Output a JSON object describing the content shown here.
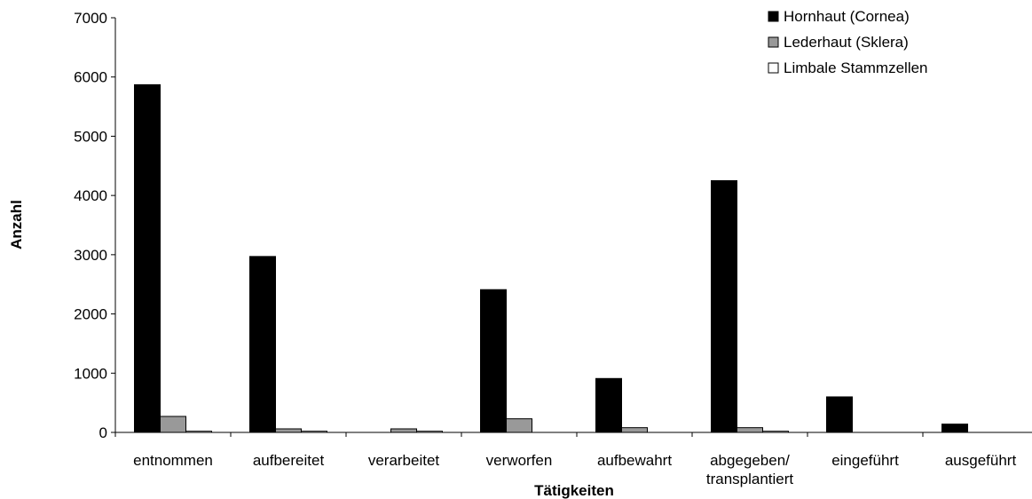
{
  "chart_data": {
    "type": "bar",
    "title": "",
    "xlabel": "Tätigkeiten",
    "ylabel": "Anzahl",
    "ylim": [
      0,
      7000
    ],
    "yticks": [
      0,
      1000,
      2000,
      3000,
      4000,
      5000,
      6000,
      7000
    ],
    "grid": false,
    "legend_position": "top-right",
    "categories": [
      [
        "entnommen"
      ],
      [
        "aufbereitet"
      ],
      [
        "verarbeitet"
      ],
      [
        "verworfen"
      ],
      [
        "aufbewahrt"
      ],
      [
        "abgegeben/",
        "transplantiert"
      ],
      [
        "eingeführt"
      ],
      [
        "ausgeführt"
      ]
    ],
    "series": [
      {
        "name": "Hornhaut (Cornea)",
        "color": "#000000",
        "values": [
          5870,
          2970,
          0,
          2410,
          910,
          4250,
          600,
          140
        ]
      },
      {
        "name": "Lederhaut (Sklera)",
        "color": "#999999",
        "values": [
          270,
          60,
          60,
          230,
          80,
          80,
          0,
          0
        ]
      },
      {
        "name": "Limbale Stammzellen",
        "color": "#ffffff",
        "values": [
          20,
          20,
          20,
          0,
          0,
          20,
          0,
          0
        ]
      }
    ]
  }
}
